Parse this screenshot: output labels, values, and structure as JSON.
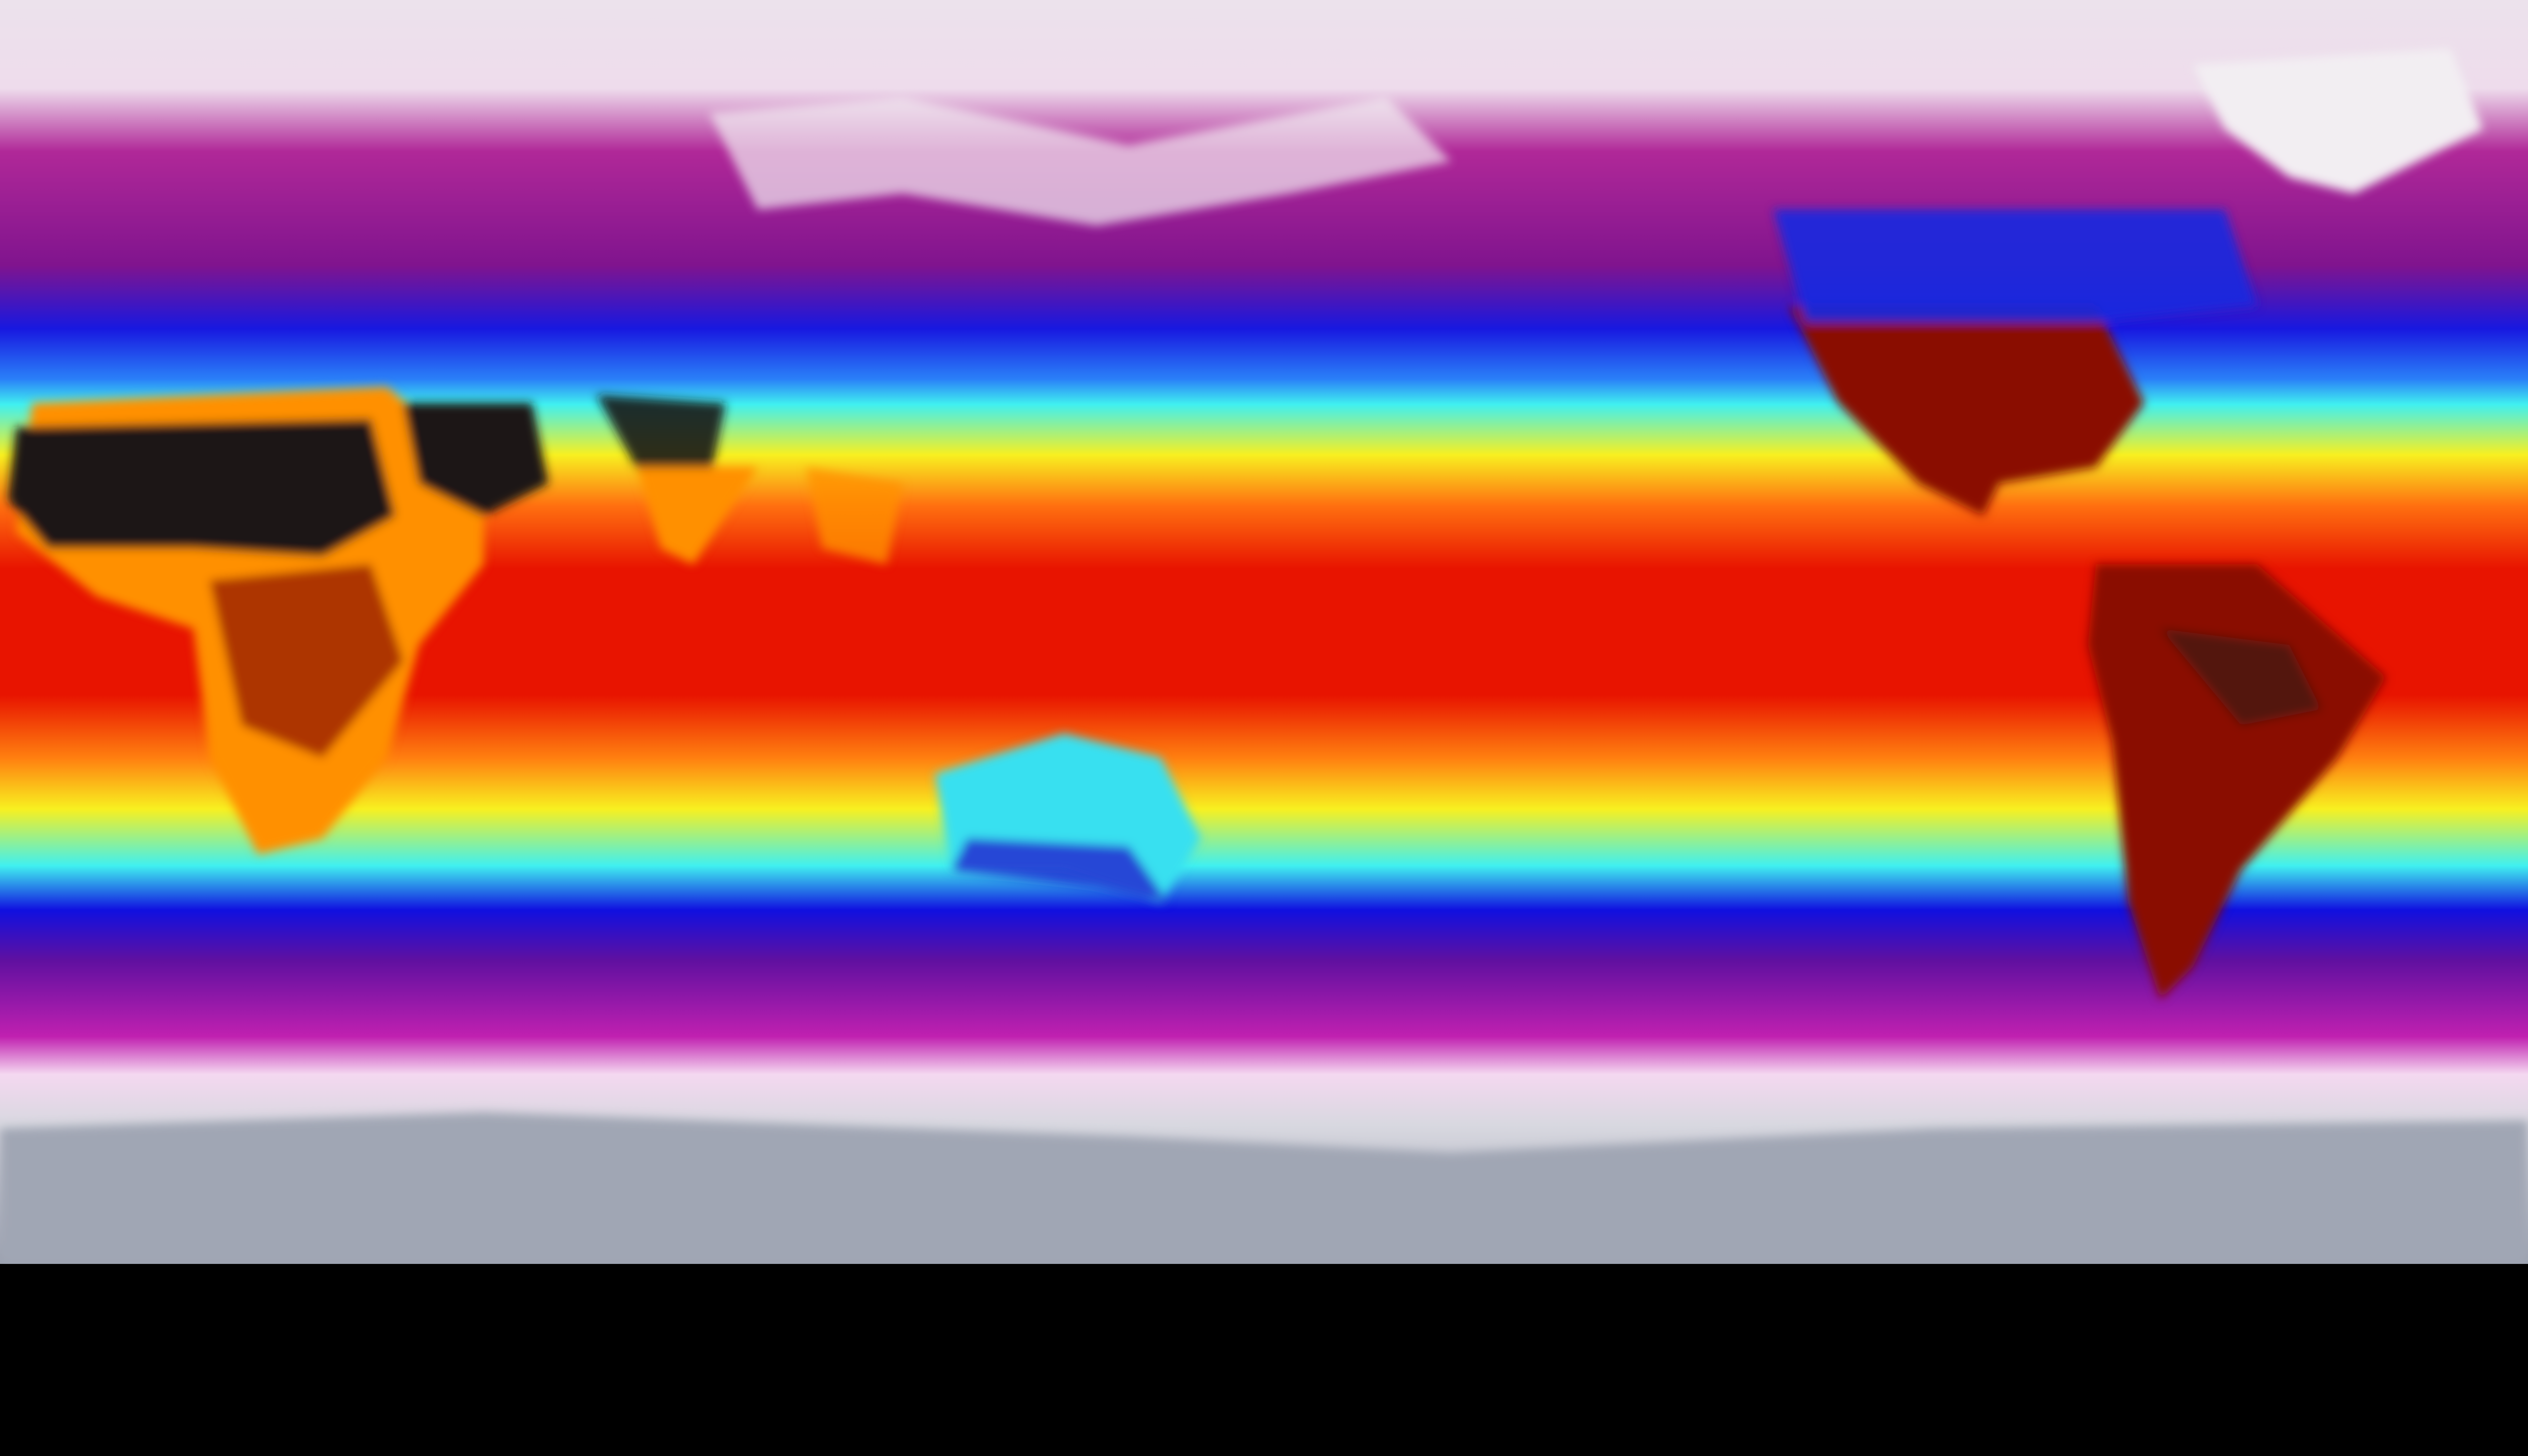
{
  "map": {
    "projection": "equirectangular",
    "variable": "temperature",
    "colormap_bands": [
      {
        "stop": 0.0,
        "color": "#ece2ec"
      },
      {
        "stop": 0.07,
        "color": "#eedcec"
      },
      {
        "stop": 0.12,
        "color": "#b02898"
      },
      {
        "stop": 0.21,
        "color": "#80148e"
      },
      {
        "stop": 0.26,
        "color": "#1818e0"
      },
      {
        "stop": 0.3,
        "color": "#2a80f8"
      },
      {
        "stop": 0.32,
        "color": "#40f0f0"
      },
      {
        "stop": 0.36,
        "color": "#f8f020"
      },
      {
        "stop": 0.4,
        "color": "#ff7010"
      },
      {
        "stop": 0.45,
        "color": "#e81400"
      },
      {
        "stop": 0.55,
        "color": "#e81400"
      },
      {
        "stop": 0.6,
        "color": "#ff8010"
      },
      {
        "stop": 0.64,
        "color": "#f8f020"
      },
      {
        "stop": 0.685,
        "color": "#40f0f0"
      },
      {
        "stop": 0.72,
        "color": "#1010e0"
      },
      {
        "stop": 0.76,
        "color": "#6010a0"
      },
      {
        "stop": 0.82,
        "color": "#c020b0"
      },
      {
        "stop": 0.85,
        "color": "#f4d8f0"
      },
      {
        "stop": 0.89,
        "color": "#d8d8e0"
      },
      {
        "stop": 1.0,
        "color": "#9aa0ae"
      }
    ],
    "region_colors": {
      "hot_desert": "#1a1414",
      "hot_land": "#8a1000",
      "warm_land": "#ff9000",
      "cool_land": "#38e0f0",
      "ice": "#f2eef2",
      "antarctica": "#a0a6b4"
    }
  }
}
